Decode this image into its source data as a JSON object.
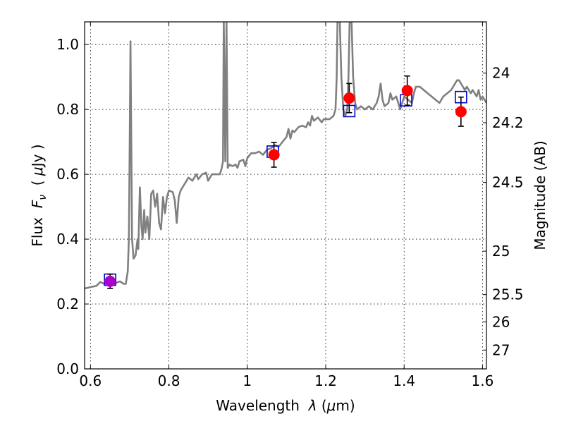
{
  "chart_data": {
    "type": "scatter",
    "title": "",
    "xlabel": {
      "prefix": "Wavelength  ",
      "symbol": "λ",
      "unit_open": " (",
      "mu": "μ",
      "unit_rest": "m)"
    },
    "ylabel": {
      "prefix": "Flux  ",
      "symbol": "F",
      "sub": "ν",
      "unit_open": "  ( ",
      "mu": "μ",
      "unit_rest": "Jy )"
    },
    "y2label": "Magnitude (AB)",
    "xlim": [
      0.585,
      1.61
    ],
    "ylim": [
      0.0,
      1.07
    ],
    "grid": true,
    "x_ticks": [
      0.6,
      0.8,
      1.0,
      1.2,
      1.4,
      1.6
    ],
    "x_tick_labels": [
      "0.6",
      "0.8",
      "1",
      "1.2",
      "1.4",
      "1.6"
    ],
    "y_ticks": [
      0.0,
      0.2,
      0.4,
      0.6,
      0.8,
      1.0
    ],
    "y_tick_labels": [
      "0.0",
      "0.2",
      "0.4",
      "0.6",
      "0.8",
      "1.0"
    ],
    "y2_ticks": [
      {
        "label": "24",
        "flux": 0.912
      },
      {
        "label": "24.2",
        "flux": 0.759
      },
      {
        "label": "24.5",
        "flux": 0.575
      },
      {
        "label": "25",
        "flux": 0.363
      },
      {
        "label": "25.5",
        "flux": 0.229
      },
      {
        "label": "26",
        "flux": 0.145
      },
      {
        "label": "27",
        "flux": 0.058
      }
    ],
    "series": [
      {
        "name": "model spectrum",
        "kind": "line",
        "color": "#808080",
        "points": [
          [
            0.585,
            0.248
          ],
          [
            0.6,
            0.252
          ],
          [
            0.615,
            0.256
          ],
          [
            0.625,
            0.268
          ],
          [
            0.635,
            0.262
          ],
          [
            0.645,
            0.272
          ],
          [
            0.655,
            0.268
          ],
          [
            0.665,
            0.265
          ],
          [
            0.675,
            0.27
          ],
          [
            0.685,
            0.262
          ],
          [
            0.69,
            0.262
          ],
          [
            0.695,
            0.3
          ],
          [
            0.698,
            0.4
          ],
          [
            0.7,
            0.7
          ],
          [
            0.702,
            1.01
          ],
          [
            0.704,
            0.7
          ],
          [
            0.706,
            0.4
          ],
          [
            0.71,
            0.34
          ],
          [
            0.715,
            0.35
          ],
          [
            0.72,
            0.4
          ],
          [
            0.722,
            0.37
          ],
          [
            0.726,
            0.56
          ],
          [
            0.73,
            0.44
          ],
          [
            0.733,
            0.4
          ],
          [
            0.737,
            0.49
          ],
          [
            0.74,
            0.42
          ],
          [
            0.745,
            0.47
          ],
          [
            0.75,
            0.4
          ],
          [
            0.755,
            0.54
          ],
          [
            0.76,
            0.55
          ],
          [
            0.765,
            0.5
          ],
          [
            0.77,
            0.54
          ],
          [
            0.775,
            0.45
          ],
          [
            0.78,
            0.43
          ],
          [
            0.785,
            0.53
          ],
          [
            0.79,
            0.48
          ],
          [
            0.795,
            0.53
          ],
          [
            0.8,
            0.55
          ],
          [
            0.81,
            0.545
          ],
          [
            0.815,
            0.52
          ],
          [
            0.82,
            0.45
          ],
          [
            0.825,
            0.53
          ],
          [
            0.83,
            0.55
          ],
          [
            0.84,
            0.57
          ],
          [
            0.85,
            0.59
          ],
          [
            0.86,
            0.58
          ],
          [
            0.87,
            0.6
          ],
          [
            0.875,
            0.585
          ],
          [
            0.885,
            0.6
          ],
          [
            0.895,
            0.605
          ],
          [
            0.9,
            0.58
          ],
          [
            0.91,
            0.6
          ],
          [
            0.92,
            0.6
          ],
          [
            0.93,
            0.6
          ],
          [
            0.935,
            0.62
          ],
          [
            0.938,
            0.64
          ],
          [
            0.94,
            1.07
          ],
          [
            0.944,
            0.64
          ],
          [
            0.947,
            1.07
          ],
          [
            0.95,
            0.62
          ],
          [
            0.955,
            0.63
          ],
          [
            0.962,
            0.625
          ],
          [
            0.97,
            0.63
          ],
          [
            0.975,
            0.62
          ],
          [
            0.98,
            0.64
          ],
          [
            0.99,
            0.645
          ],
          [
            0.995,
            0.625
          ],
          [
            1.0,
            0.65
          ],
          [
            1.01,
            0.665
          ],
          [
            1.02,
            0.665
          ],
          [
            1.03,
            0.67
          ],
          [
            1.04,
            0.66
          ],
          [
            1.05,
            0.675
          ],
          [
            1.06,
            0.68
          ],
          [
            1.07,
            0.69
          ],
          [
            1.08,
            0.685
          ],
          [
            1.09,
            0.7
          ],
          [
            1.1,
            0.715
          ],
          [
            1.105,
            0.74
          ],
          [
            1.11,
            0.71
          ],
          [
            1.115,
            0.735
          ],
          [
            1.12,
            0.73
          ],
          [
            1.13,
            0.745
          ],
          [
            1.14,
            0.75
          ],
          [
            1.15,
            0.745
          ],
          [
            1.155,
            0.76
          ],
          [
            1.16,
            0.75
          ],
          [
            1.165,
            0.78
          ],
          [
            1.17,
            0.765
          ],
          [
            1.175,
            0.77
          ],
          [
            1.18,
            0.775
          ],
          [
            1.19,
            0.76
          ],
          [
            1.195,
            0.77
          ],
          [
            1.2,
            0.77
          ],
          [
            1.21,
            0.77
          ],
          [
            1.22,
            0.78
          ],
          [
            1.225,
            0.8
          ],
          [
            1.228,
            0.9
          ],
          [
            1.23,
            1.07
          ],
          [
            1.236,
            1.07
          ],
          [
            1.24,
            0.9
          ],
          [
            1.245,
            0.8
          ],
          [
            1.25,
            0.78
          ],
          [
            1.255,
            0.8
          ],
          [
            1.258,
            0.9
          ],
          [
            1.261,
            1.07
          ],
          [
            1.266,
            1.07
          ],
          [
            1.27,
            0.9
          ],
          [
            1.275,
            0.82
          ],
          [
            1.28,
            0.8
          ],
          [
            1.29,
            0.81
          ],
          [
            1.3,
            0.8
          ],
          [
            1.31,
            0.81
          ],
          [
            1.32,
            0.8
          ],
          [
            1.33,
            0.82
          ],
          [
            1.335,
            0.84
          ],
          [
            1.34,
            0.88
          ],
          [
            1.345,
            0.83
          ],
          [
            1.35,
            0.81
          ],
          [
            1.36,
            0.82
          ],
          [
            1.365,
            0.85
          ],
          [
            1.37,
            0.83
          ],
          [
            1.38,
            0.84
          ],
          [
            1.39,
            0.8
          ],
          [
            1.4,
            0.84
          ],
          [
            1.41,
            0.83
          ],
          [
            1.42,
            0.82
          ],
          [
            1.425,
            0.85
          ],
          [
            1.43,
            0.87
          ],
          [
            1.44,
            0.87
          ],
          [
            1.45,
            0.86
          ],
          [
            1.46,
            0.85
          ],
          [
            1.47,
            0.84
          ],
          [
            1.48,
            0.83
          ],
          [
            1.49,
            0.82
          ],
          [
            1.5,
            0.84
          ],
          [
            1.51,
            0.85
          ],
          [
            1.52,
            0.86
          ],
          [
            1.53,
            0.88
          ],
          [
            1.535,
            0.89
          ],
          [
            1.54,
            0.89
          ],
          [
            1.55,
            0.87
          ],
          [
            1.555,
            0.86
          ],
          [
            1.56,
            0.87
          ],
          [
            1.565,
            0.86
          ],
          [
            1.57,
            0.85
          ],
          [
            1.575,
            0.86
          ],
          [
            1.58,
            0.85
          ],
          [
            1.585,
            0.84
          ],
          [
            1.59,
            0.86
          ],
          [
            1.595,
            0.83
          ],
          [
            1.6,
            0.84
          ],
          [
            1.61,
            0.82
          ]
        ]
      },
      {
        "name": "model photometry",
        "kind": "open-square",
        "color": "#0000cc",
        "x": [
          0.65,
          1.065,
          1.26,
          1.405,
          1.545
        ],
        "y": [
          0.275,
          0.67,
          0.795,
          0.828,
          0.838
        ]
      },
      {
        "name": "observed photometry",
        "kind": "filled-circle-errorbar",
        "color": "#ff0000",
        "x": [
          0.65,
          1.068,
          1.26,
          1.408,
          1.545
        ],
        "y": [
          0.27,
          0.66,
          0.835,
          0.858,
          0.793
        ],
        "yerr": [
          0.022,
          0.038,
          0.045,
          0.045,
          0.045
        ],
        "point_colors": [
          "#aa00cc",
          "#ff0000",
          "#ff0000",
          "#ff0000",
          "#ff0000"
        ]
      }
    ]
  }
}
